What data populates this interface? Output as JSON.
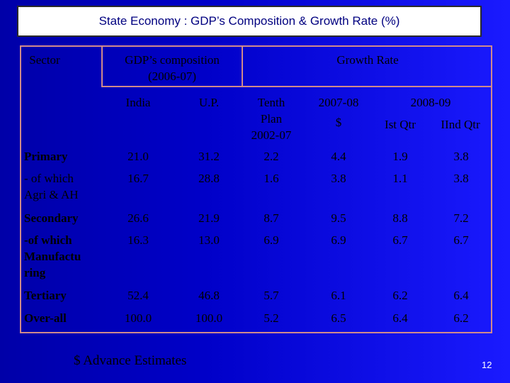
{
  "slide": {
    "title": "State Economy : GDP’s Composition & Growth Rate (%)",
    "footnote": "$ Advance Estimates",
    "page_number": "12"
  },
  "headers": {
    "sector": "Sector",
    "composition_line1": "GDP’s composition",
    "composition_line2": "(2006-07)",
    "growth_rate": "Growth Rate",
    "india": "India",
    "up": "U.P.",
    "tenth_line1": "Tenth",
    "tenth_line2": "Plan",
    "tenth_line3": "2002-07",
    "fy0708_line1": "2007-08",
    "fy0708_line2": "$",
    "fy0809": "2008-09",
    "q1": "Ist Qtr",
    "q2": "IInd Qtr"
  },
  "rows": [
    {
      "sector_lines": [
        "Primary"
      ],
      "bold": true,
      "values": [
        "21.0",
        "31.2",
        "2.2",
        "4.4",
        "1.9",
        "3.8"
      ]
    },
    {
      "sector_lines": [
        "- of which",
        "Agri & AH"
      ],
      "bold": false,
      "values": [
        "16.7",
        "28.8",
        "1.6",
        "3.8",
        "1.1",
        "3.8"
      ]
    },
    {
      "sector_lines": [
        "Secondary"
      ],
      "bold": true,
      "values": [
        "26.6",
        "21.9",
        "8.7",
        "9.5",
        "8.8",
        "7.2"
      ]
    },
    {
      "sector_lines": [
        "-of which",
        "Manufactu",
        "ring"
      ],
      "bold": true,
      "values": [
        "16.3",
        "13.0",
        "6.9",
        "6.9",
        "6.7",
        "6.7"
      ]
    },
    {
      "sector_lines": [
        "Tertiary"
      ],
      "bold": true,
      "values": [
        "52.4",
        "46.8",
        "5.7",
        "6.1",
        "6.2",
        "6.4"
      ]
    },
    {
      "sector_lines": [
        "Over-all"
      ],
      "bold": true,
      "values": [
        "100.0",
        "100.0",
        "5.2",
        "6.5",
        "6.4",
        "6.2"
      ]
    }
  ]
}
